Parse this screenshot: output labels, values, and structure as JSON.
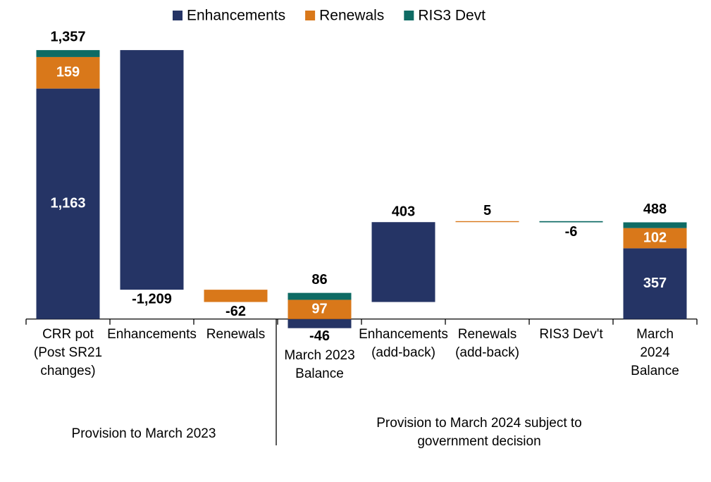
{
  "chart_data": {
    "type": "waterfall",
    "categories": [
      "CRR pot (Post SR21 changes)",
      "Enhancements",
      "Renewals",
      "March 2023 Balance",
      "Enhancements (add-back)",
      "Renewals (add-back)",
      "RIS3 Dev't",
      "March 2024 Balance"
    ],
    "series": [
      {
        "name": "Enhancements",
        "color": "#253465",
        "values": [
          1163,
          -1209,
          null,
          -46,
          403,
          null,
          null,
          357
        ],
        "value_labels": [
          "1,163",
          "-1,209",
          null,
          "-46",
          "403",
          null,
          null,
          "357"
        ]
      },
      {
        "name": "Renewals",
        "color": "#d9781a",
        "values": [
          159,
          null,
          -62,
          97,
          null,
          5,
          null,
          102
        ],
        "value_labels": [
          "159",
          null,
          "-62",
          "97",
          null,
          "5",
          null,
          "102"
        ]
      },
      {
        "name": "RIS3 Devt",
        "color": "#0e6b64",
        "values": [
          35,
          null,
          null,
          35,
          null,
          null,
          -6,
          29
        ],
        "value_labels": [
          null,
          null,
          null,
          null,
          null,
          null,
          "-6",
          null
        ]
      }
    ],
    "totals": {
      "values": [
        1357,
        null,
        null,
        86,
        null,
        null,
        null,
        488
      ],
      "value_labels": [
        "1,357",
        null,
        null,
        "86",
        null,
        null,
        null,
        "488"
      ]
    },
    "groups": [
      "Provision to March 2023",
      "Provision to March 2024 subject to government decision"
    ],
    "ylim": [
      -200,
      1400
    ],
    "legend": "top"
  }
}
